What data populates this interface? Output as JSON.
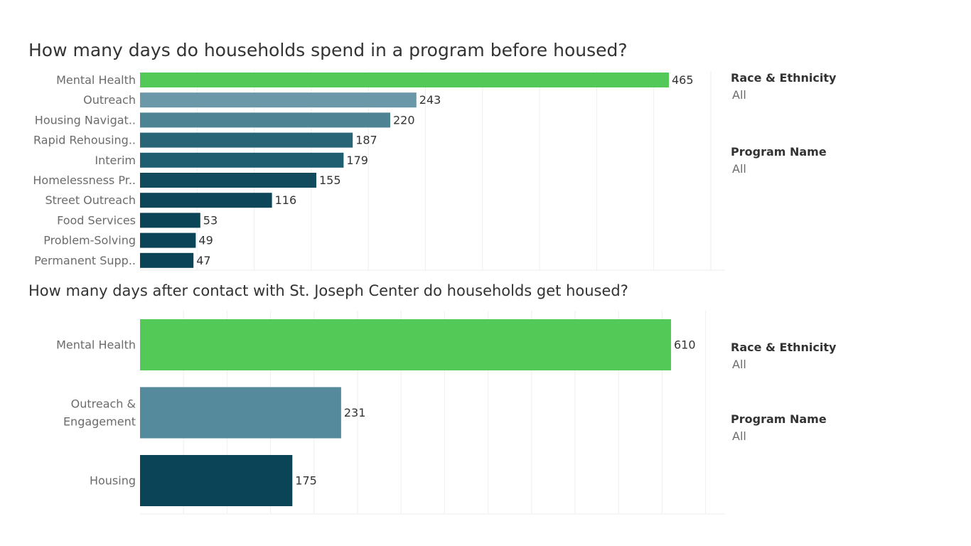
{
  "chart_data": [
    {
      "type": "bar",
      "orientation": "horizontal",
      "title": "How many days do households spend in a program before housed?",
      "categories": [
        "Mental Health",
        "Outreach",
        "Housing Navigat..",
        "Rapid Rehousing..",
        "Interim",
        "Homelessness Pr..",
        "Street Outreach",
        "Food Services",
        "Problem-Solving",
        "Permanent Supp.."
      ],
      "values": [
        465,
        243,
        220,
        187,
        179,
        155,
        116,
        53,
        49,
        47
      ],
      "colors": [
        "#53c957",
        "#6a98a8",
        "#4d8393",
        "#276577",
        "#1f5d71",
        "#0f4a5d",
        "#0c4658",
        "#0b4456",
        "#0b4456",
        "#0b4456"
      ],
      "xlim": [
        0,
        500
      ],
      "grid": "vertical"
    },
    {
      "type": "bar",
      "orientation": "horizontal",
      "title": "How many days after contact with St. Joseph Center do households get housed?",
      "categories": [
        "Outreach &\nEngagement",
        "Mental Health",
        "Housing"
      ],
      "categories_display_order": [
        "Mental Health",
        "Outreach &\nEngagement",
        "Housing"
      ],
      "values": [
        610,
        231,
        175
      ],
      "colors": [
        "#53c957",
        "#548a9b",
        "#0b4456"
      ],
      "xlim": [
        0,
        650
      ],
      "grid": "vertical"
    }
  ],
  "filters_top": [
    {
      "title": "Race & Ethnicity",
      "value": "All"
    },
    {
      "title": "Program Name",
      "value": "All"
    }
  ],
  "filters_bottom": [
    {
      "title": "Race & Ethnicity",
      "value": "All"
    },
    {
      "title": "Program Name",
      "value": "All"
    }
  ]
}
